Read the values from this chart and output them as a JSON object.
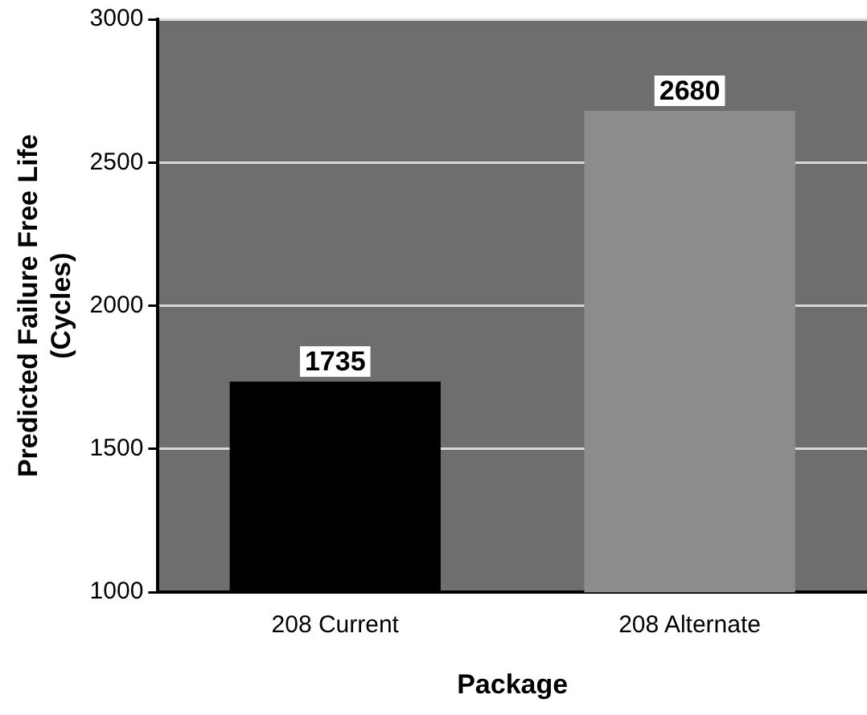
{
  "chart_data": {
    "type": "bar",
    "xlabel": "Package",
    "ylabel": "Predicted Failure Free Life\n(Cycles)",
    "categories": [
      "208 Current",
      "208 Alternate"
    ],
    "values": [
      1735,
      2680
    ],
    "colors": [
      "#000000",
      "#8c8c8c"
    ],
    "ylim": [
      1000,
      3000
    ],
    "yticks": [
      1000,
      1500,
      2000,
      2500,
      3000
    ],
    "grid": "y",
    "data_labels": true,
    "legend": false
  }
}
